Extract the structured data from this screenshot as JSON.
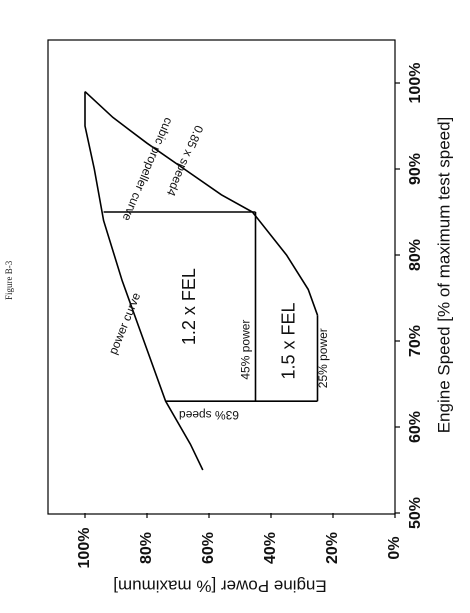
{
  "figure_label": "Figure B-3",
  "chart_data": {
    "type": "line",
    "title": "",
    "xlabel": "Engine Speed [% of maximum test speed]",
    "ylabel": "Engine Power [% maximum]",
    "xlim": [
      50,
      100
    ],
    "ylim": [
      0,
      100
    ],
    "x_ticks": [
      "50%",
      "60%",
      "70%",
      "80%",
      "90%",
      "100%"
    ],
    "y_ticks": [
      "0%",
      "20%",
      "40%",
      "60%",
      "80%",
      "100%"
    ],
    "grid": false,
    "series": [
      {
        "name": "power curve",
        "x": [
          55,
          58,
          63,
          70,
          77,
          84,
          90,
          95,
          99
        ],
        "y": [
          62,
          66,
          74,
          81,
          88,
          94,
          97,
          100,
          100
        ]
      },
      {
        "name": "cubic propeller curve",
        "x": [
          63,
          63
        ],
        "y": [
          74,
          74
        ]
      },
      {
        "name": "0.85 x speed^4",
        "x": [
          99,
          96,
          93,
          90,
          87,
          85,
          80,
          76,
          73
        ],
        "y": [
          100,
          91,
          80,
          68,
          56,
          46,
          35,
          28,
          25
        ]
      }
    ],
    "boundaries": {
      "speed_63": {
        "x": [
          63,
          63
        ],
        "y": [
          25,
          74
        ]
      },
      "power_45": {
        "x": [
          63,
          85
        ],
        "y": [
          45,
          45
        ]
      },
      "power_25": {
        "x": [
          63,
          73
        ],
        "y": [
          25,
          25
        ]
      },
      "speed_85": {
        "x": [
          85,
          85
        ],
        "y": [
          45,
          94
        ]
      }
    },
    "annotations": {
      "power_curve": "power curve",
      "cubic_propeller_curve": "cubic propeller curve",
      "speed4": "0.85 x speed4",
      "speed63": "63% speed",
      "power45": "45% power",
      "power25": "25% power",
      "region_12": "1.2 x FEL",
      "region_15": "1.5 x FEL"
    }
  }
}
